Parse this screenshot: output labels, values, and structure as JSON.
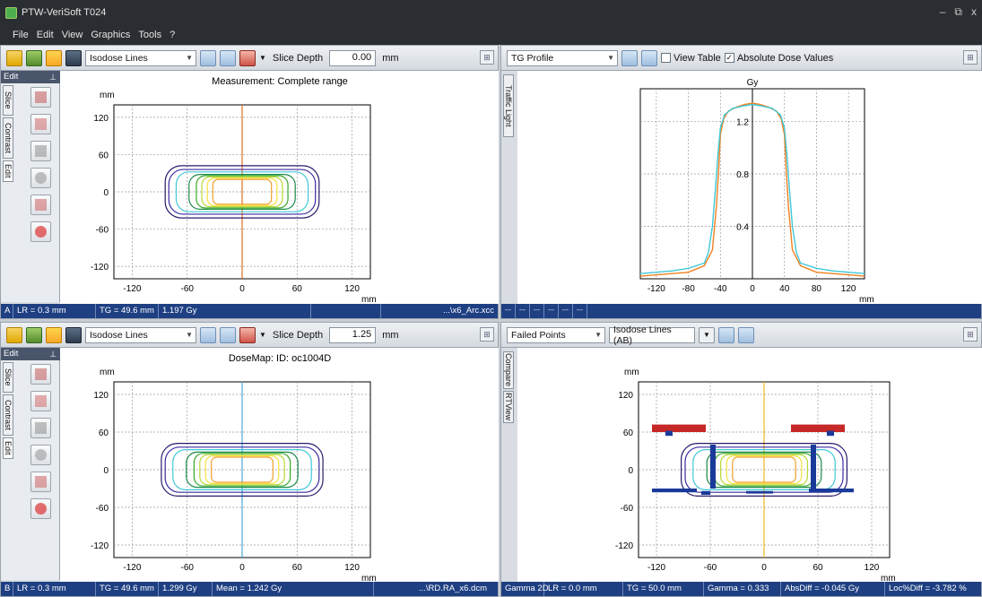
{
  "window": {
    "title": "PTW-VeriSoft T024",
    "min": "–",
    "max": "⧉",
    "close": "x"
  },
  "menu": [
    "File",
    "Edit",
    "View",
    "Graphics",
    "Tools",
    "?"
  ],
  "panes": {
    "top_left": {
      "display_mode": "Isodose Lines",
      "slice_depth_label": "Slice Depth",
      "slice_depth_value": "0.00",
      "slice_depth_unit": "mm",
      "sidebar_title": "Edit",
      "tabs": [
        "Slice",
        "Contrast",
        "Edit"
      ],
      "plot_title": "Measurement: Complete range",
      "y_unit": "mm",
      "x_unit": "mm",
      "y_ticks": [
        "120",
        "60",
        "0",
        "-60",
        "-120"
      ],
      "x_ticks": [
        "-120",
        "-60",
        "0",
        "60",
        "120"
      ],
      "status": [
        "A",
        "LR = 0.3 mm",
        "TG = 49.6 mm",
        "1.197 Gy",
        "",
        "...\\x6_Arc.xcc"
      ]
    },
    "top_right": {
      "display_mode": "TG Profile",
      "view_table_label": "View Table",
      "view_table_checked": false,
      "abs_dose_label": "Absolute Dose Values",
      "abs_dose_checked": true,
      "side_tab": "Traffic Light",
      "y_unit": "Gy",
      "x_unit": "mm",
      "y_ticks": [
        "1.2",
        "0.8",
        "0.4"
      ],
      "x_ticks": [
        "-120",
        "-80",
        "-40",
        "0",
        "40",
        "80",
        "120"
      ],
      "status": [
        "---",
        "---",
        "---",
        "---",
        "---",
        "---"
      ]
    },
    "bottom_left": {
      "display_mode": "Isodose Lines",
      "slice_depth_label": "Slice Depth",
      "slice_depth_value": "1.25",
      "slice_depth_unit": "mm",
      "sidebar_title": "Edit",
      "tabs": [
        "Slice",
        "Contrast",
        "Edit"
      ],
      "plot_title": "DoseMap: ID: oc1004D",
      "y_unit": "mm",
      "x_unit": "mm",
      "y_ticks": [
        "120",
        "60",
        "0",
        "-60",
        "-120"
      ],
      "x_ticks": [
        "-120",
        "-60",
        "0",
        "60",
        "120"
      ],
      "status": [
        "B",
        "LR = 0.3 mm",
        "TG = 49.6 mm",
        "1.299 Gy",
        "Mean = 1.242 Gy",
        "...\\RD.RA_x6.dcm"
      ]
    },
    "bottom_right": {
      "display_mode": "Failed Points",
      "secondary_mode": "Isodose Lines (AB)",
      "side_tabs": [
        "Compare",
        "RTView"
      ],
      "y_unit": "mm",
      "x_unit": "mm",
      "y_ticks": [
        "120",
        "60",
        "0",
        "-60",
        "-120"
      ],
      "x_ticks": [
        "-120",
        "-60",
        "0",
        "60",
        "120"
      ],
      "status": [
        "Gamma 2D",
        "LR = 0.0 mm",
        "TG = 50.0 mm",
        "Gamma = 0.333",
        "AbsDiff = -0.045 Gy",
        "Loc%Diff = -3.782 %"
      ]
    }
  },
  "colors": {
    "titlebar": "#2a2d31",
    "status": "#1e3f82",
    "crosshair_orange": "#e07020",
    "crosshair_blue": "#4aa8d8",
    "crosshair_yellow": "#e8b820",
    "profile_orange": "#f08020",
    "profile_cyan": "#40c8d8",
    "failed_red": "#c62828",
    "failed_blue": "#1a3a9a"
  },
  "chart_data": [
    {
      "type": "line",
      "title": "",
      "xlabel": "mm",
      "ylabel": "Gy",
      "xlim": [
        -140,
        140
      ],
      "ylim": [
        0,
        1.45
      ],
      "series": [
        {
          "x": [
            -140,
            -120,
            -100,
            -80,
            -60,
            -50,
            -45,
            -42,
            -40,
            -36,
            -30,
            -20,
            -10,
            0,
            10,
            20,
            30,
            36,
            40,
            42,
            45,
            50,
            60,
            80,
            100,
            120,
            140
          ],
          "y": [
            0.02,
            0.03,
            0.04,
            0.05,
            0.1,
            0.22,
            0.55,
            0.85,
            1.1,
            1.22,
            1.28,
            1.31,
            1.33,
            1.34,
            1.33,
            1.31,
            1.28,
            1.22,
            1.1,
            0.85,
            0.55,
            0.22,
            0.1,
            0.05,
            0.04,
            0.03,
            0.02
          ]
        },
        {
          "x": [
            -140,
            -120,
            -100,
            -80,
            -60,
            -55,
            -50,
            -46,
            -43,
            -40,
            -35,
            -25,
            -10,
            0,
            10,
            25,
            35,
            40,
            43,
            46,
            50,
            55,
            60,
            80,
            100,
            120,
            140
          ],
          "y": [
            0.04,
            0.05,
            0.06,
            0.08,
            0.12,
            0.2,
            0.4,
            0.7,
            0.95,
            1.15,
            1.25,
            1.3,
            1.32,
            1.33,
            1.32,
            1.3,
            1.25,
            1.15,
            0.95,
            0.7,
            0.4,
            0.2,
            0.12,
            0.08,
            0.06,
            0.05,
            0.04
          ]
        }
      ]
    }
  ]
}
